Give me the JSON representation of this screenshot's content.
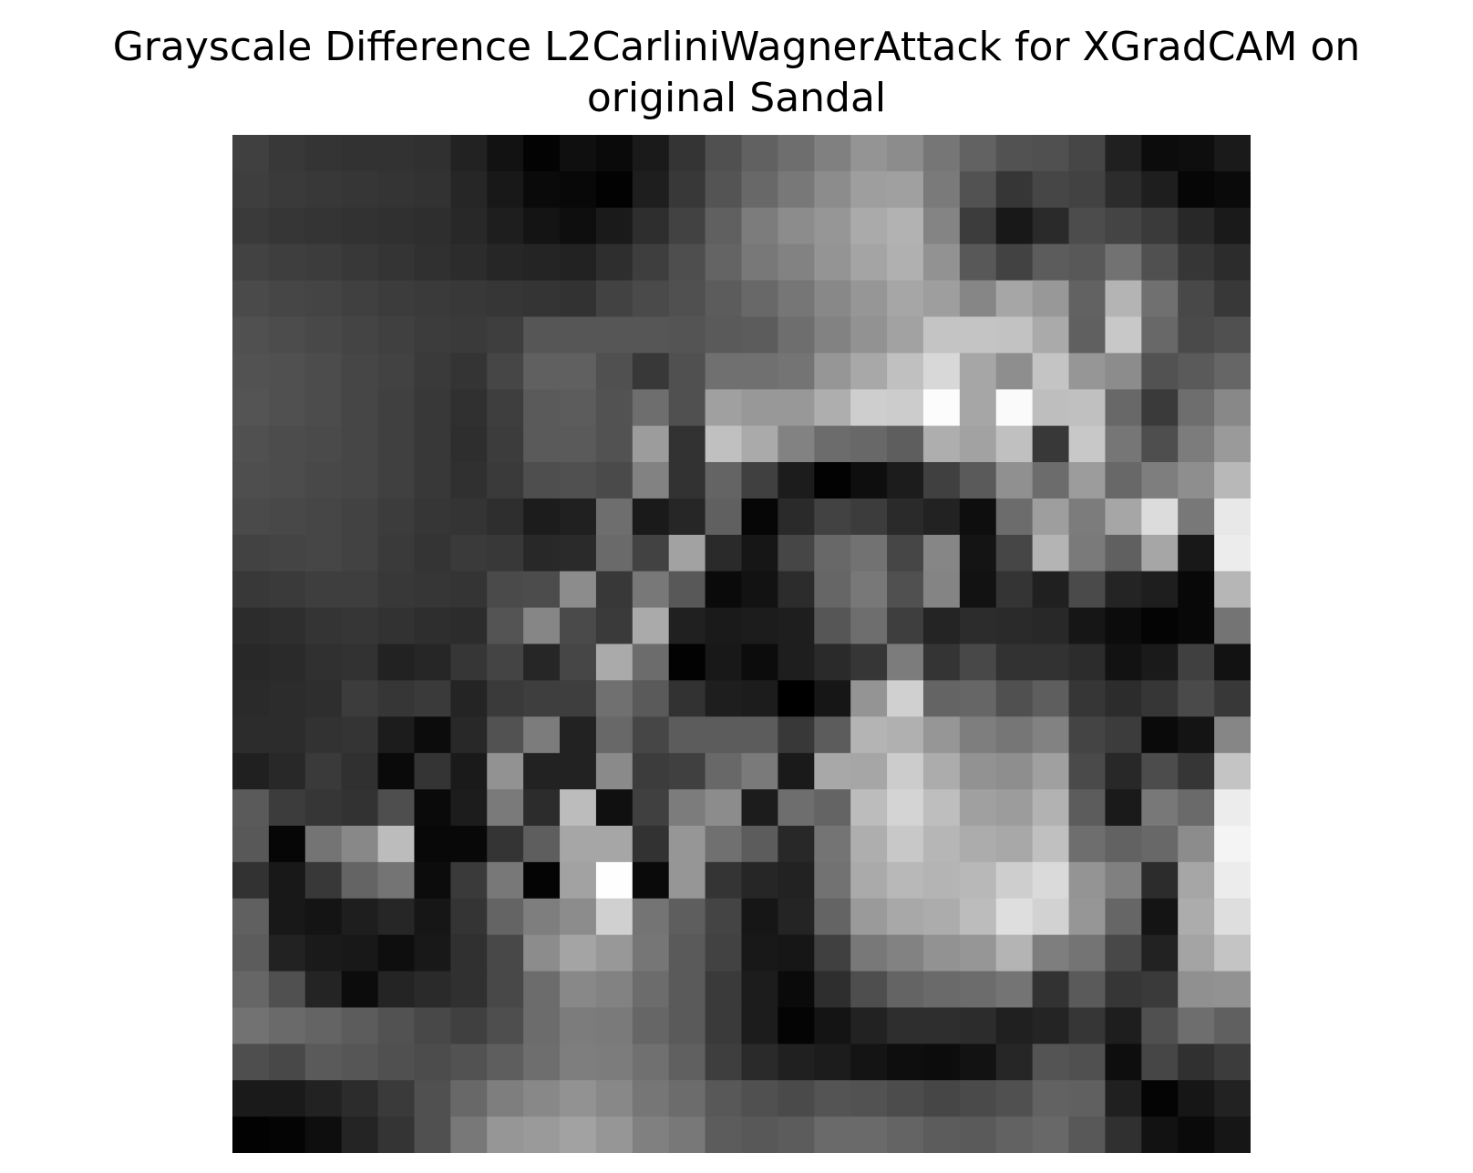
{
  "chart_data": {
    "type": "heatmap",
    "title_lines": [
      "Grayscale Difference L2CarliniWagnerAttack for XGradCAM on",
      "original Sandal"
    ],
    "colormap": "gray",
    "axes": "off",
    "value_range": [
      0,
      255
    ],
    "rows": 28,
    "cols": 28,
    "values": [
      [
        64,
        56,
        52,
        50,
        50,
        48,
        34,
        18,
        3,
        15,
        10,
        26,
        52,
        80,
        97,
        110,
        128,
        148,
        140,
        118,
        98,
        82,
        80,
        70,
        32,
        12,
        14,
        26
      ],
      [
        62,
        58,
        56,
        54,
        52,
        50,
        38,
        24,
        10,
        8,
        2,
        30,
        56,
        84,
        104,
        120,
        140,
        158,
        160,
        122,
        82,
        54,
        70,
        66,
        44,
        30,
        6,
        10
      ],
      [
        58,
        54,
        52,
        50,
        48,
        46,
        40,
        30,
        20,
        14,
        26,
        46,
        66,
        96,
        124,
        140,
        150,
        170,
        178,
        132,
        60,
        24,
        42,
        76,
        68,
        58,
        40,
        26
      ],
      [
        66,
        62,
        60,
        56,
        52,
        48,
        44,
        38,
        36,
        34,
        46,
        62,
        78,
        100,
        120,
        130,
        148,
        164,
        176,
        146,
        88,
        66,
        92,
        88,
        114,
        80,
        54,
        44
      ],
      [
        74,
        70,
        68,
        64,
        60,
        58,
        56,
        54,
        52,
        50,
        66,
        74,
        80,
        92,
        104,
        118,
        136,
        150,
        166,
        158,
        134,
        166,
        152,
        98,
        180,
        112,
        72,
        56
      ],
      [
        80,
        76,
        72,
        68,
        64,
        60,
        58,
        62,
        86,
        86,
        86,
        86,
        84,
        90,
        92,
        110,
        130,
        146,
        162,
        196,
        196,
        194,
        170,
        96,
        200,
        104,
        74,
        80
      ],
      [
        82,
        80,
        76,
        70,
        66,
        58,
        52,
        70,
        96,
        96,
        80,
        56,
        80,
        112,
        112,
        116,
        150,
        168,
        192,
        216,
        166,
        142,
        196,
        150,
        140,
        82,
        90,
        102
      ],
      [
        84,
        80,
        76,
        70,
        64,
        56,
        48,
        62,
        90,
        92,
        82,
        110,
        80,
        160,
        152,
        152,
        174,
        206,
        204,
        252,
        166,
        250,
        190,
        192,
        104,
        58,
        110,
        136
      ],
      [
        80,
        76,
        74,
        70,
        64,
        56,
        46,
        60,
        90,
        90,
        82,
        156,
        50,
        192,
        170,
        130,
        108,
        104,
        94,
        174,
        162,
        192,
        56,
        200,
        118,
        78,
        124,
        154
      ],
      [
        78,
        76,
        72,
        70,
        64,
        56,
        48,
        58,
        78,
        80,
        74,
        130,
        50,
        100,
        64,
        28,
        2,
        14,
        28,
        64,
        90,
        144,
        108,
        156,
        104,
        126,
        142,
        184
      ],
      [
        74,
        72,
        70,
        66,
        60,
        54,
        52,
        46,
        28,
        32,
        110,
        26,
        38,
        96,
        6,
        42,
        66,
        60,
        42,
        34,
        14,
        108,
        158,
        124,
        166,
        220,
        120,
        232
      ],
      [
        66,
        68,
        70,
        66,
        58,
        52,
        58,
        56,
        40,
        42,
        106,
        66,
        162,
        42,
        22,
        70,
        104,
        114,
        70,
        134,
        20,
        70,
        180,
        122,
        96,
        166,
        24,
        236
      ],
      [
        56,
        58,
        62,
        62,
        56,
        54,
        52,
        74,
        76,
        140,
        56,
        120,
        88,
        10,
        18,
        44,
        102,
        120,
        80,
        132,
        18,
        52,
        32,
        74,
        36,
        30,
        8,
        182
      ],
      [
        44,
        46,
        52,
        54,
        50,
        46,
        44,
        84,
        134,
        74,
        58,
        170,
        32,
        26,
        28,
        30,
        86,
        110,
        62,
        36,
        44,
        42,
        40,
        22,
        12,
        4,
        8,
        116
      ],
      [
        40,
        42,
        48,
        50,
        34,
        38,
        54,
        68,
        38,
        70,
        170,
        108,
        2,
        24,
        12,
        30,
        42,
        54,
        124,
        52,
        72,
        50,
        50,
        44,
        18,
        26,
        64,
        18
      ],
      [
        42,
        44,
        46,
        60,
        54,
        58,
        36,
        58,
        62,
        62,
        112,
        90,
        50,
        30,
        28,
        0,
        22,
        148,
        208,
        100,
        102,
        80,
        94,
        54,
        44,
        54,
        74,
        56
      ],
      [
        44,
        44,
        50,
        52,
        28,
        12,
        40,
        82,
        124,
        34,
        104,
        70,
        92,
        92,
        92,
        56,
        92,
        180,
        176,
        150,
        126,
        118,
        130,
        68,
        60,
        10,
        20,
        134
      ],
      [
        32,
        40,
        58,
        48,
        10,
        52,
        26,
        146,
        34,
        34,
        138,
        60,
        64,
        104,
        122,
        26,
        168,
        166,
        204,
        172,
        146,
        142,
        160,
        74,
        40,
        76,
        54,
        196
      ],
      [
        90,
        60,
        54,
        50,
        78,
        10,
        28,
        122,
        44,
        188,
        16,
        64,
        124,
        140,
        28,
        110,
        100,
        188,
        212,
        190,
        160,
        156,
        178,
        92,
        26,
        120,
        106,
        236
      ],
      [
        88,
        6,
        116,
        136,
        188,
        8,
        8,
        52,
        94,
        166,
        166,
        50,
        150,
        112,
        92,
        40,
        116,
        174,
        200,
        182,
        172,
        168,
        192,
        110,
        98,
        104,
        140,
        244
      ],
      [
        50,
        24,
        56,
        100,
        116,
        12,
        58,
        120,
        4,
        162,
        254,
        10,
        150,
        52,
        38,
        34,
        114,
        170,
        184,
        180,
        184,
        206,
        218,
        148,
        128,
        44,
        166,
        236
      ],
      [
        96,
        24,
        20,
        30,
        38,
        22,
        52,
        100,
        126,
        140,
        208,
        116,
        94,
        68,
        22,
        36,
        100,
        154,
        168,
        172,
        188,
        222,
        210,
        150,
        102,
        20,
        172,
        222
      ],
      [
        92,
        34,
        26,
        24,
        14,
        24,
        48,
        72,
        140,
        164,
        152,
        118,
        90,
        66,
        24,
        22,
        64,
        120,
        130,
        146,
        150,
        180,
        126,
        116,
        72,
        34,
        164,
        196
      ],
      [
        102,
        80,
        36,
        12,
        36,
        42,
        48,
        72,
        108,
        136,
        130,
        108,
        90,
        58,
        28,
        10,
        46,
        78,
        100,
        106,
        108,
        116,
        50,
        90,
        54,
        58,
        144,
        146
      ],
      [
        114,
        106,
        100,
        92,
        82,
        72,
        64,
        78,
        108,
        124,
        122,
        102,
        90,
        58,
        28,
        4,
        20,
        34,
        46,
        46,
        44,
        32,
        36,
        54,
        30,
        80,
        110,
        96
      ],
      [
        78,
        72,
        90,
        86,
        80,
        76,
        82,
        94,
        110,
        126,
        124,
        112,
        96,
        62,
        42,
        32,
        28,
        20,
        14,
        12,
        18,
        38,
        84,
        80,
        14,
        70,
        48,
        60
      ],
      [
        26,
        26,
        34,
        44,
        58,
        80,
        104,
        126,
        136,
        146,
        136,
        118,
        108,
        88,
        80,
        74,
        84,
        82,
        76,
        70,
        74,
        80,
        98,
        96,
        32,
        4,
        22,
        34
      ],
      [
        2,
        4,
        14,
        36,
        52,
        80,
        120,
        150,
        154,
        162,
        150,
        128,
        120,
        92,
        88,
        92,
        106,
        106,
        100,
        92,
        90,
        98,
        104,
        88,
        48,
        18,
        10,
        22
      ]
    ]
  }
}
